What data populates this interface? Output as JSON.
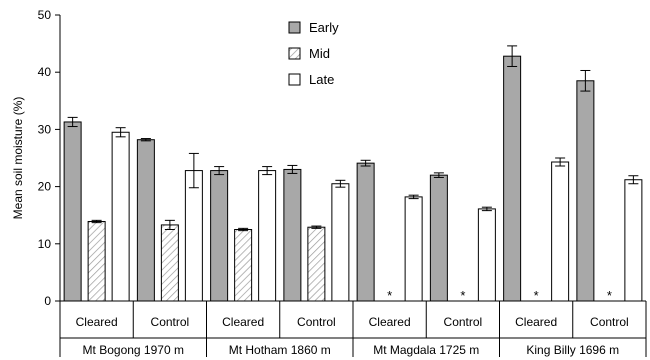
{
  "chart_data": {
    "type": "bar",
    "ylabel": "Mean soil moisture (%)",
    "ylim": [
      0,
      50
    ],
    "yticks": [
      0,
      10,
      20,
      30,
      40,
      50
    ],
    "legend_position": "top-center",
    "series": [
      {
        "name": "Early",
        "fill": "#a8a8a8",
        "pattern": "solid"
      },
      {
        "name": "Mid",
        "fill": "#ffffff",
        "pattern": "hatched"
      },
      {
        "name": "Late",
        "fill": "#ffffff",
        "pattern": "solid"
      }
    ],
    "sites": [
      {
        "name": "Mt Bogong 1970 m",
        "treatments": [
          {
            "label": "Cleared",
            "values": [
              31.3,
              13.9,
              29.5
            ],
            "errors": [
              0.8,
              0.2,
              0.8
            ],
            "missing_marker": ""
          },
          {
            "label": "Control",
            "values": [
              28.2,
              13.3,
              22.8
            ],
            "errors": [
              0.2,
              0.8,
              3.0
            ],
            "missing_marker": ""
          }
        ]
      },
      {
        "name": "Mt Hotham 1860 m",
        "treatments": [
          {
            "label": "Cleared",
            "values": [
              22.8,
              12.5,
              22.8
            ],
            "errors": [
              0.7,
              0.2,
              0.7
            ],
            "missing_marker": ""
          },
          {
            "label": "Control",
            "values": [
              23.0,
              12.9,
              20.5
            ],
            "errors": [
              0.7,
              0.2,
              0.6
            ],
            "missing_marker": ""
          }
        ]
      },
      {
        "name": "Mt Magdala 1725 m",
        "treatments": [
          {
            "label": "Cleared",
            "values": [
              24.1,
              null,
              18.2
            ],
            "errors": [
              0.5,
              null,
              0.3
            ],
            "missing_marker": "*"
          },
          {
            "label": "Control",
            "values": [
              22.0,
              null,
              16.1
            ],
            "errors": [
              0.4,
              null,
              0.3
            ],
            "missing_marker": "*"
          }
        ]
      },
      {
        "name": "King Billy 1696 m",
        "treatments": [
          {
            "label": "Cleared",
            "values": [
              42.8,
              null,
              24.3
            ],
            "errors": [
              1.8,
              null,
              0.7
            ],
            "missing_marker": "*"
          },
          {
            "label": "Control",
            "values": [
              38.5,
              null,
              21.2
            ],
            "errors": [
              1.8,
              null,
              0.7
            ],
            "missing_marker": "*"
          }
        ]
      }
    ]
  }
}
